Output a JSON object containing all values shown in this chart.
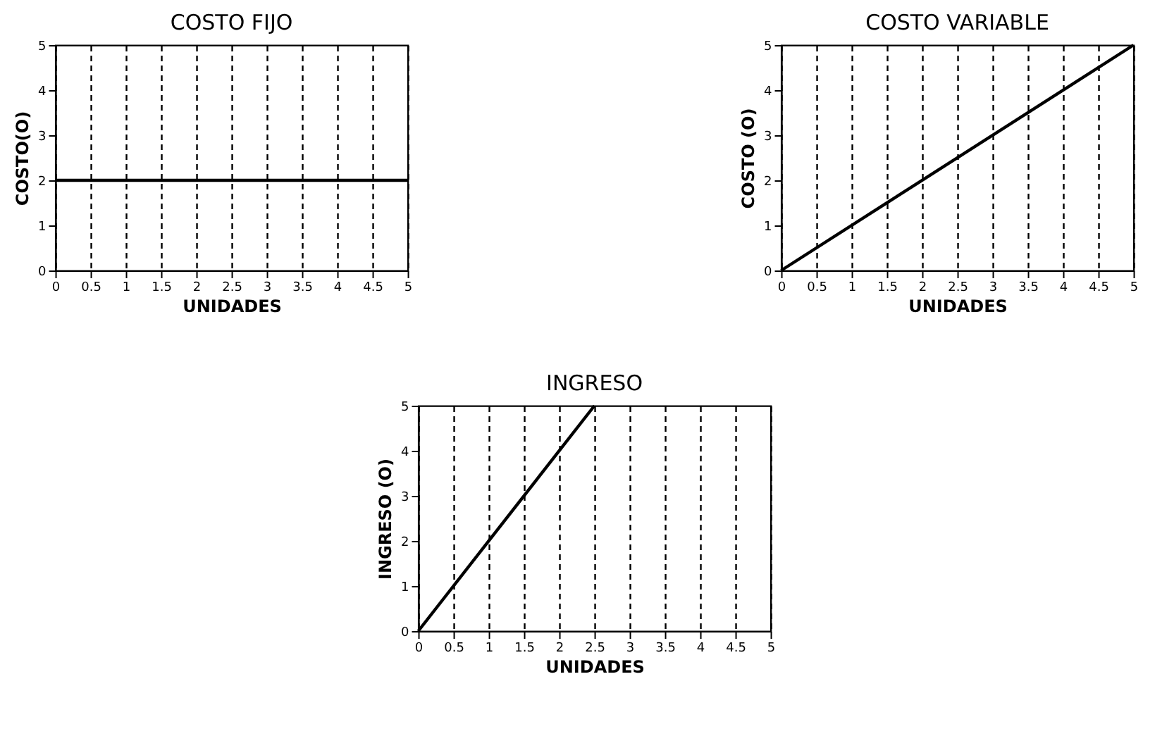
{
  "chart_data": [
    {
      "type": "line",
      "title": "COSTO FIJO",
      "xlabel": "UNIDADES",
      "ylabel": "COSTO(O)",
      "x": [
        0,
        5
      ],
      "series": [
        {
          "color": "#000000",
          "values": [
            2,
            2
          ]
        }
      ],
      "xlim": [
        0,
        5
      ],
      "ylim": [
        0,
        5
      ],
      "xticks": [
        0,
        0.5,
        1,
        1.5,
        2,
        2.5,
        3,
        3.5,
        4,
        4.5,
        5
      ],
      "yticks": [
        0,
        1,
        2,
        3,
        4,
        5
      ],
      "grid": "x",
      "line_style": "solid"
    },
    {
      "type": "line",
      "title": "COSTO VARIABLE",
      "xlabel": "UNIDADES",
      "ylabel": "COSTO (O)",
      "x": [
        0,
        5
      ],
      "series": [
        {
          "color": "#000000",
          "values": [
            0,
            5
          ]
        }
      ],
      "xlim": [
        0,
        5
      ],
      "ylim": [
        0,
        5
      ],
      "xticks": [
        0,
        0.5,
        1,
        1.5,
        2,
        2.5,
        3,
        3.5,
        4,
        4.5,
        5
      ],
      "yticks": [
        0,
        1,
        2,
        3,
        4,
        5
      ],
      "grid": "x",
      "line_style": "solid"
    },
    {
      "type": "line",
      "title": "INGRESO",
      "xlabel": "UNIDADES",
      "ylabel": "INGRESO (O)",
      "x": [
        0,
        2.5
      ],
      "series": [
        {
          "color": "#000000",
          "values": [
            0,
            5
          ]
        }
      ],
      "xlim": [
        0,
        5
      ],
      "ylim": [
        0,
        5
      ],
      "xticks": [
        0,
        0.5,
        1,
        1.5,
        2,
        2.5,
        3,
        3.5,
        4,
        4.5,
        5
      ],
      "yticks": [
        0,
        1,
        2,
        3,
        4,
        5
      ],
      "grid": "x",
      "line_style": "solid"
    }
  ]
}
